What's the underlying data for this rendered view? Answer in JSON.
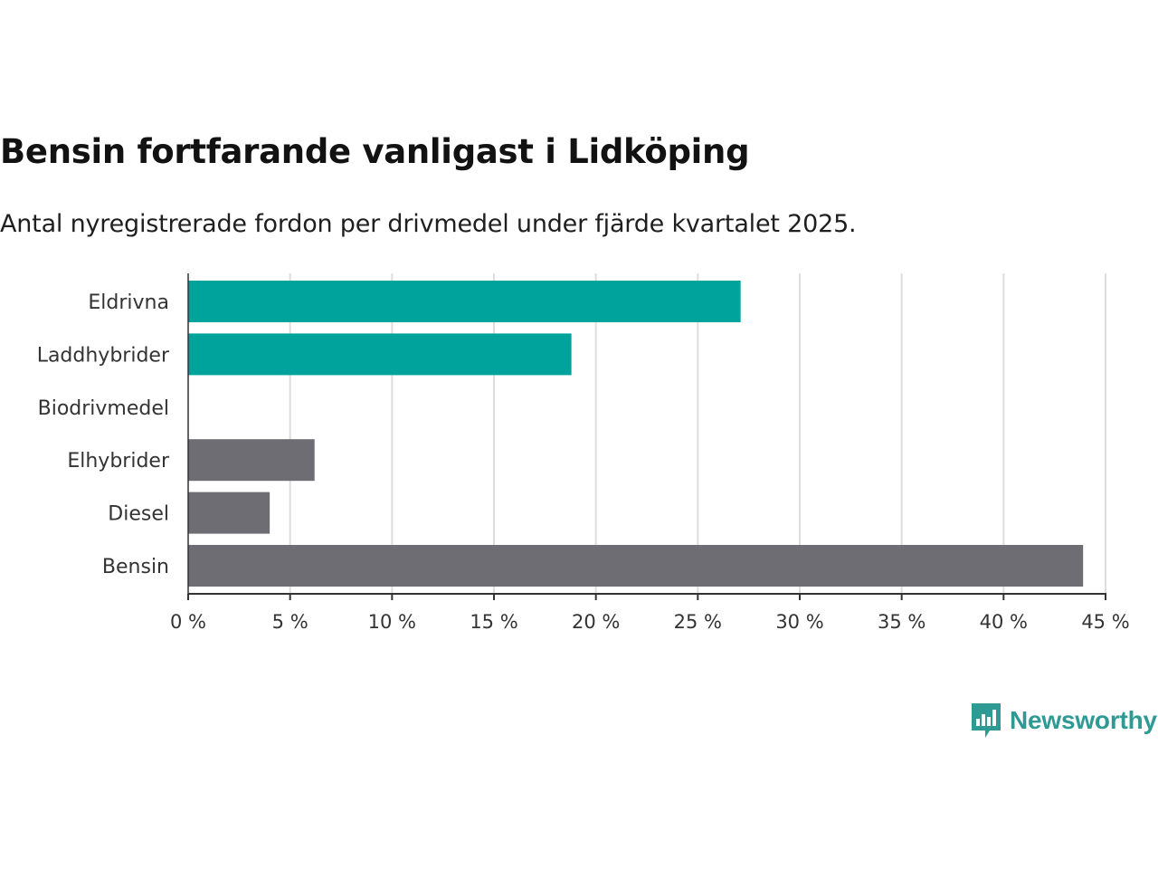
{
  "title": "Bensin fortfarande vanligast i Lidköping",
  "subtitle": "Antal nyregistrerade fordon per drivmedel under fjärde kvartalet 2025.",
  "brand": {
    "name": "Newsworthy",
    "logo_icon": "newsworthy-chart-bubble-icon"
  },
  "colors": {
    "electric": "#00a39b",
    "fossil": "#6e6d73",
    "gridline": "#dddddd",
    "axis": "#333333",
    "brand": "#2f9a93"
  },
  "chart_data": {
    "type": "bar",
    "orientation": "horizontal",
    "title": "Bensin fortfarande vanligast i Lidköping",
    "subtitle": "Antal nyregistrerade fordon per drivmedel under fjärde kvartalet 2025.",
    "xlabel": "",
    "ylabel": "",
    "xlim": [
      0,
      45
    ],
    "ticks": [
      0,
      5,
      10,
      15,
      20,
      25,
      30,
      35,
      40,
      45
    ],
    "tick_labels": [
      "0 %",
      "5 %",
      "10 %",
      "15 %",
      "20 %",
      "25 %",
      "30 %",
      "35 %",
      "40 %",
      "45 %"
    ],
    "grid": true,
    "categories": [
      "Eldrivna",
      "Laddhybrider",
      "Biodrivmedel",
      "Elhybrider",
      "Diesel",
      "Bensin"
    ],
    "values": [
      27.1,
      18.8,
      0,
      6.2,
      4.0,
      43.9
    ],
    "color_groups": [
      "electric",
      "electric",
      "electric",
      "fossil",
      "fossil",
      "fossil"
    ]
  }
}
